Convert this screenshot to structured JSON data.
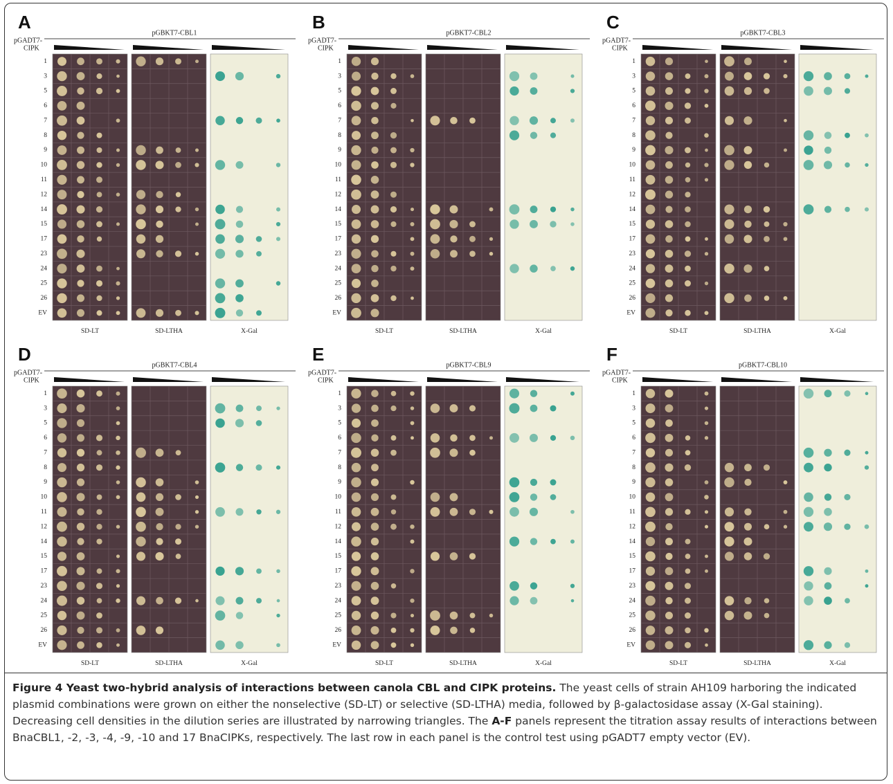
{
  "figure": {
    "prefix": "pGADT7-",
    "prefix_2": "CIPK",
    "row_labels": [
      "1",
      "3",
      "5",
      "6",
      "7",
      "8",
      "9",
      "10",
      "11",
      "12",
      "14",
      "15",
      "17",
      "23",
      "24",
      "25",
      "26",
      "EV"
    ],
    "media": [
      "SD-LT",
      "SD-LTHA",
      "X-Gal"
    ],
    "panels": [
      {
        "letter": "A",
        "construct": "pGBKT7-CBL1"
      },
      {
        "letter": "B",
        "construct": "pGBKT7-CBL2"
      },
      {
        "letter": "C",
        "construct": "pGBKT7-CBL3"
      },
      {
        "letter": "D",
        "construct": "pGBKT7-CBL4"
      },
      {
        "letter": "E",
        "construct": "pGBKT7-CBL9"
      },
      {
        "letter": "F",
        "construct": "pGBKT7-CBL10"
      }
    ]
  },
  "caption": {
    "title": "Figure 4 Yeast two-hybrid analysis of interactions between canola CBL and CIPK proteins.",
    "text_1": " The yeast cells of strain AH109 harboring the indicated plasmid combinations were grown on either the nonselective (SD-LT) or selective (SD-LTHA) media, followed by β-galactosidase assay (X-Gal staining). Decreasing cell densities in the dilution series are illustrated by narrowing triangles. The ",
    "bold_ref": "A-F",
    "text_2": " panels represent the titration assay results of interactions between BnaCBL1, -2, -3, -4, -9, -10 and 17 BnaCIPKs, respectively. The last row in each panel is the control test using pGADT7 empty vector (EV)."
  }
}
